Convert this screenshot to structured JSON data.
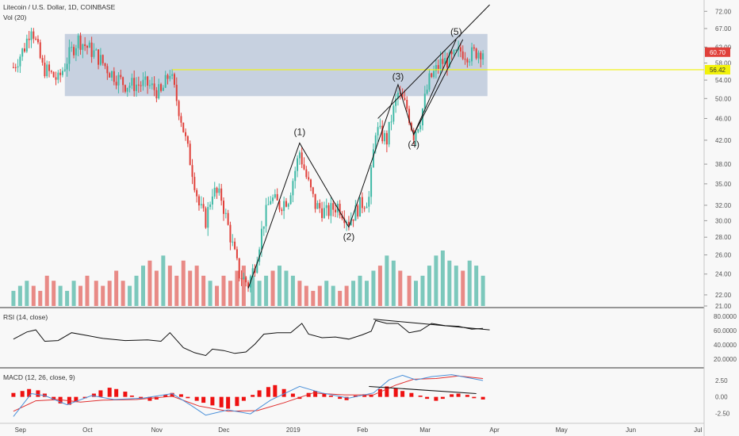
{
  "header": {
    "symbol_title": "Litecoin / U.S. Dollar, 1D, COINBASE",
    "volume_label": "Vol (20)"
  },
  "colors": {
    "up": "#3fb9a6",
    "down": "#e0403a",
    "upVolume": "#7cc8bc",
    "downVolume": "#e88a86",
    "zone": "#9fb0cc",
    "resistance": "#f2f20a",
    "macdHist": "#ee1111",
    "macdLine": "#4a90d9",
    "signalLine": "#e03030"
  },
  "chart_data": {
    "type": "candlestick",
    "title": "Litecoin / U.S. Dollar, 1D, COINBASE",
    "xlabel": "",
    "ylabel": "",
    "x_axis_labels": [
      "Sep",
      "Oct",
      "Nov",
      "Dec",
      "2019",
      "Feb",
      "Mar",
      "Apr",
      "May",
      "Jun",
      "Jul"
    ],
    "y_axis_ticks": [
      "72.00",
      "67.00",
      "62.00",
      "58.00",
      "54.00",
      "50.00",
      "46.00",
      "42.00",
      "38.00",
      "35.00",
      "32.00",
      "30.00",
      "28.00",
      "26.00",
      "24.00",
      "22.00",
      "21.00"
    ],
    "ylim": [
      21,
      74
    ],
    "y_scale": "log",
    "price_path": [
      [
        "2018-08-31",
        57
      ],
      [
        "2018-09-05",
        62
      ],
      [
        "2018-09-08",
        68
      ],
      [
        "2018-09-13",
        57
      ],
      [
        "2018-09-20",
        54
      ],
      [
        "2018-09-25",
        60
      ],
      [
        "2018-09-29",
        64
      ],
      [
        "2018-10-07",
        60
      ],
      [
        "2018-10-13",
        56
      ],
      [
        "2018-10-20",
        53
      ],
      [
        "2018-10-30",
        53
      ],
      [
        "2018-11-05",
        51
      ],
      [
        "2018-11-09",
        56
      ],
      [
        "2018-11-14",
        46
      ],
      [
        "2018-11-16",
        42
      ],
      [
        "2018-11-19",
        37
      ],
      [
        "2018-11-22",
        32
      ],
      [
        "2018-11-25",
        30
      ],
      [
        "2018-11-28",
        34
      ],
      [
        "2018-12-02",
        33
      ],
      [
        "2018-12-07",
        27
      ],
      [
        "2018-12-10",
        24
      ],
      [
        "2018-12-14",
        23
      ],
      [
        "2018-12-17",
        25
      ],
      [
        "2018-12-21",
        30
      ],
      [
        "2018-12-24",
        33
      ],
      [
        "2018-12-28",
        32
      ],
      [
        "2019-01-01",
        33
      ],
      [
        "2019-01-06",
        40
      ],
      [
        "2019-01-09",
        36
      ],
      [
        "2019-01-13",
        32
      ],
      [
        "2019-01-18",
        31
      ],
      [
        "2019-01-23",
        32
      ],
      [
        "2019-01-28",
        30
      ],
      [
        "2019-02-02",
        32
      ],
      [
        "2019-02-06",
        33
      ],
      [
        "2019-02-09",
        44
      ],
      [
        "2019-02-14",
        42
      ],
      [
        "2019-02-16",
        46
      ],
      [
        "2019-02-19",
        51
      ],
      [
        "2019-02-23",
        48
      ],
      [
        "2019-02-26",
        43
      ],
      [
        "2019-03-01",
        46
      ],
      [
        "2019-03-05",
        54
      ],
      [
        "2019-03-10",
        58
      ],
      [
        "2019-03-15",
        59
      ],
      [
        "2019-03-19",
        61
      ],
      [
        "2019-03-23",
        60
      ],
      [
        "2019-03-27",
        61
      ],
      [
        "2019-03-29",
        61
      ]
    ],
    "supply_zone": {
      "from": "2018-09-23",
      "to": "2019-03-31",
      "low": 50.5,
      "high": 65.5
    },
    "resistance_line": {
      "from": "2018-11-10",
      "value": 56.4
    },
    "last_price_label": "60.70",
    "resistance_label": "56.42",
    "elliott_waves": [
      {
        "label": "(1)",
        "date": "2019-01-06",
        "price": 41.5
      },
      {
        "label": "(2)",
        "date": "2019-01-28",
        "price": 29.2
      },
      {
        "label": "(3)",
        "date": "2019-02-19",
        "price": 53.0
      },
      {
        "label": "(4)",
        "date": "2019-02-26",
        "price": 43.0
      },
      {
        "label": "(5)",
        "date": "2019-03-17",
        "price": 64.0
      }
    ],
    "volume": {
      "label": "Vol (20)",
      "levels": [
        3,
        4,
        5,
        4,
        3,
        6,
        5,
        4,
        3,
        5,
        4,
        6,
        5,
        4,
        5,
        7,
        5,
        4,
        6,
        8,
        9,
        7,
        10,
        8,
        6,
        9,
        7,
        8,
        6,
        5,
        4,
        6,
        5,
        7,
        8,
        6,
        5,
        6,
        7,
        8,
        7,
        6,
        5,
        4,
        3,
        4,
        5,
        4,
        3,
        4,
        5,
        6,
        5,
        7,
        8,
        10,
        9,
        7,
        6,
        5,
        6,
        8,
        10,
        11,
        9,
        8,
        7,
        9,
        8,
        6
      ]
    },
    "rsi": {
      "label": "RSI (14, close)",
      "ticks": [
        "80.0000",
        "60.0000",
        "40.0000",
        "20.0000"
      ],
      "ylim": [
        10,
        90
      ],
      "values": [
        [
          "2018-08-31",
          48
        ],
        [
          "2018-09-06",
          58
        ],
        [
          "2018-09-10",
          61
        ],
        [
          "2018-09-14",
          45
        ],
        [
          "2018-09-20",
          46
        ],
        [
          "2018-09-26",
          57
        ],
        [
          "2018-10-03",
          53
        ],
        [
          "2018-10-10",
          49
        ],
        [
          "2018-10-20",
          46
        ],
        [
          "2018-10-30",
          47
        ],
        [
          "2018-11-05",
          45
        ],
        [
          "2018-11-09",
          57
        ],
        [
          "2018-11-15",
          36
        ],
        [
          "2018-11-20",
          29
        ],
        [
          "2018-11-25",
          25
        ],
        [
          "2018-11-28",
          34
        ],
        [
          "2018-12-03",
          32
        ],
        [
          "2018-12-08",
          28
        ],
        [
          "2018-12-13",
          30
        ],
        [
          "2018-12-17",
          41
        ],
        [
          "2018-12-21",
          55
        ],
        [
          "2018-12-27",
          57
        ],
        [
          "2019-01-02",
          57
        ],
        [
          "2019-01-07",
          70
        ],
        [
          "2019-01-10",
          55
        ],
        [
          "2019-01-16",
          50
        ],
        [
          "2019-01-22",
          51
        ],
        [
          "2019-01-28",
          48
        ],
        [
          "2019-02-03",
          54
        ],
        [
          "2019-02-07",
          59
        ],
        [
          "2019-02-09",
          74
        ],
        [
          "2019-02-14",
          70
        ],
        [
          "2019-02-19",
          70
        ],
        [
          "2019-02-24",
          57
        ],
        [
          "2019-03-01",
          60
        ],
        [
          "2019-03-06",
          70
        ],
        [
          "2019-03-12",
          67
        ],
        [
          "2019-03-18",
          66
        ],
        [
          "2019-03-24",
          62
        ],
        [
          "2019-03-29",
          63
        ]
      ],
      "trendline": [
        [
          "2019-02-08",
          76
        ],
        [
          "2019-04-01",
          61
        ]
      ]
    },
    "macd": {
      "label": "MACD (12, 26, close, 9)",
      "ticks": [
        "2.50",
        "0.00",
        "-2.50"
      ],
      "ylim": [
        -3.8,
        4.2
      ],
      "histogram": [
        0.6,
        0.9,
        1.2,
        1.0,
        0.5,
        -0.5,
        -1.0,
        -1.2,
        -0.8,
        -0.2,
        0.5,
        1.0,
        1.4,
        1.2,
        0.8,
        0.2,
        -0.3,
        -0.6,
        -0.4,
        0.3,
        0.6,
        0.4,
        -0.2,
        -0.6,
        -0.9,
        -1.3,
        -1.6,
        -1.8,
        -1.4,
        -0.6,
        0.3,
        1.0,
        1.5,
        1.8,
        1.2,
        0.5,
        -0.3,
        0.6,
        0.9,
        0.5,
        0.2,
        -0.3,
        -0.5,
        0.2,
        0.4,
        0.3,
        1.2,
        1.6,
        1.3,
        0.9,
        0.6,
        0.2,
        -0.3,
        -0.6,
        -0.3,
        0.4,
        0.5,
        0.3,
        -0.2,
        -0.4
      ],
      "macd_line": [
        [
          "2018-08-31",
          -3.0
        ],
        [
          "2018-09-08",
          0.5
        ],
        [
          "2018-09-14",
          0.2
        ],
        [
          "2018-09-24",
          -1.2
        ],
        [
          "2018-10-05",
          0.2
        ],
        [
          "2018-10-15",
          -0.4
        ],
        [
          "2018-10-28",
          -0.2
        ],
        [
          "2018-11-10",
          0.5
        ],
        [
          "2018-11-18",
          -1.2
        ],
        [
          "2018-11-25",
          -2.8
        ],
        [
          "2018-12-05",
          -2.0
        ],
        [
          "2018-12-15",
          -2.6
        ],
        [
          "2018-12-24",
          -0.5
        ],
        [
          "2019-01-06",
          1.6
        ],
        [
          "2019-01-16",
          0.6
        ],
        [
          "2019-01-28",
          -0.2
        ],
        [
          "2019-02-08",
          0.6
        ],
        [
          "2019-02-15",
          2.6
        ],
        [
          "2019-02-21",
          3.3
        ],
        [
          "2019-02-27",
          2.6
        ],
        [
          "2019-03-06",
          3.1
        ],
        [
          "2019-03-15",
          3.4
        ],
        [
          "2019-03-29",
          2.5
        ]
      ],
      "signal_line": [
        [
          "2018-08-31",
          -2.2
        ],
        [
          "2018-09-10",
          -0.6
        ],
        [
          "2018-09-20",
          -0.4
        ],
        [
          "2018-09-30",
          -0.8
        ],
        [
          "2018-10-10",
          -0.5
        ],
        [
          "2018-10-25",
          -0.4
        ],
        [
          "2018-11-10",
          0.1
        ],
        [
          "2018-11-22",
          -1.4
        ],
        [
          "2018-12-05",
          -2.2
        ],
        [
          "2018-12-18",
          -2.1
        ],
        [
          "2018-12-30",
          -0.9
        ],
        [
          "2019-01-12",
          0.6
        ],
        [
          "2019-01-26",
          0.3
        ],
        [
          "2019-02-08",
          0.3
        ],
        [
          "2019-02-18",
          1.8
        ],
        [
          "2019-02-26",
          2.7
        ],
        [
          "2019-03-08",
          2.8
        ],
        [
          "2019-03-18",
          3.2
        ],
        [
          "2019-03-29",
          2.8
        ]
      ],
      "trendline": [
        [
          "2019-02-06",
          1.6
        ],
        [
          "2019-03-26",
          0.5
        ]
      ]
    }
  }
}
